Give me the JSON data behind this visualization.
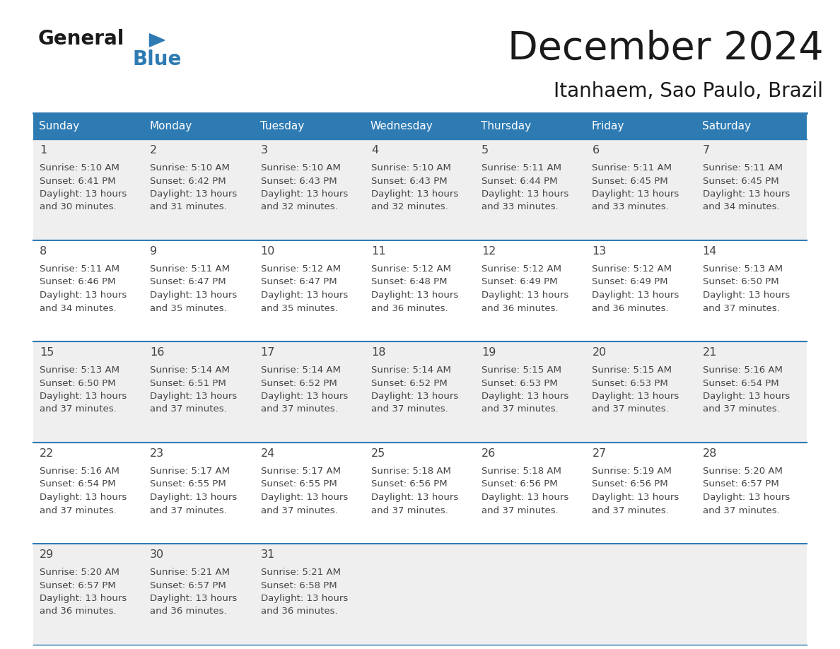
{
  "title": "December 2024",
  "subtitle": "Itanhaem, Sao Paulo, Brazil",
  "header_color": "#2E7BB4",
  "header_text_color": "#FFFFFF",
  "day_names": [
    "Sunday",
    "Monday",
    "Tuesday",
    "Wednesday",
    "Thursday",
    "Friday",
    "Saturday"
  ],
  "background_color": "#FFFFFF",
  "alt_cell_bg_color": "#EFEFEF",
  "border_color": "#2E7BB4",
  "text_color": "#444444",
  "days": [
    {
      "day": 1,
      "col": 0,
      "row": 0,
      "sunrise": "5:10 AM",
      "sunset": "6:41 PM",
      "daylight_h": "13 hours",
      "daylight_m": "and 30 minutes."
    },
    {
      "day": 2,
      "col": 1,
      "row": 0,
      "sunrise": "5:10 AM",
      "sunset": "6:42 PM",
      "daylight_h": "13 hours",
      "daylight_m": "and 31 minutes."
    },
    {
      "day": 3,
      "col": 2,
      "row": 0,
      "sunrise": "5:10 AM",
      "sunset": "6:43 PM",
      "daylight_h": "13 hours",
      "daylight_m": "and 32 minutes."
    },
    {
      "day": 4,
      "col": 3,
      "row": 0,
      "sunrise": "5:10 AM",
      "sunset": "6:43 PM",
      "daylight_h": "13 hours",
      "daylight_m": "and 32 minutes."
    },
    {
      "day": 5,
      "col": 4,
      "row": 0,
      "sunrise": "5:11 AM",
      "sunset": "6:44 PM",
      "daylight_h": "13 hours",
      "daylight_m": "and 33 minutes."
    },
    {
      "day": 6,
      "col": 5,
      "row": 0,
      "sunrise": "5:11 AM",
      "sunset": "6:45 PM",
      "daylight_h": "13 hours",
      "daylight_m": "and 33 minutes."
    },
    {
      "day": 7,
      "col": 6,
      "row": 0,
      "sunrise": "5:11 AM",
      "sunset": "6:45 PM",
      "daylight_h": "13 hours",
      "daylight_m": "and 34 minutes."
    },
    {
      "day": 8,
      "col": 0,
      "row": 1,
      "sunrise": "5:11 AM",
      "sunset": "6:46 PM",
      "daylight_h": "13 hours",
      "daylight_m": "and 34 minutes."
    },
    {
      "day": 9,
      "col": 1,
      "row": 1,
      "sunrise": "5:11 AM",
      "sunset": "6:47 PM",
      "daylight_h": "13 hours",
      "daylight_m": "and 35 minutes."
    },
    {
      "day": 10,
      "col": 2,
      "row": 1,
      "sunrise": "5:12 AM",
      "sunset": "6:47 PM",
      "daylight_h": "13 hours",
      "daylight_m": "and 35 minutes."
    },
    {
      "day": 11,
      "col": 3,
      "row": 1,
      "sunrise": "5:12 AM",
      "sunset": "6:48 PM",
      "daylight_h": "13 hours",
      "daylight_m": "and 36 minutes."
    },
    {
      "day": 12,
      "col": 4,
      "row": 1,
      "sunrise": "5:12 AM",
      "sunset": "6:49 PM",
      "daylight_h": "13 hours",
      "daylight_m": "and 36 minutes."
    },
    {
      "day": 13,
      "col": 5,
      "row": 1,
      "sunrise": "5:12 AM",
      "sunset": "6:49 PM",
      "daylight_h": "13 hours",
      "daylight_m": "and 36 minutes."
    },
    {
      "day": 14,
      "col": 6,
      "row": 1,
      "sunrise": "5:13 AM",
      "sunset": "6:50 PM",
      "daylight_h": "13 hours",
      "daylight_m": "and 37 minutes."
    },
    {
      "day": 15,
      "col": 0,
      "row": 2,
      "sunrise": "5:13 AM",
      "sunset": "6:50 PM",
      "daylight_h": "13 hours",
      "daylight_m": "and 37 minutes."
    },
    {
      "day": 16,
      "col": 1,
      "row": 2,
      "sunrise": "5:14 AM",
      "sunset": "6:51 PM",
      "daylight_h": "13 hours",
      "daylight_m": "and 37 minutes."
    },
    {
      "day": 17,
      "col": 2,
      "row": 2,
      "sunrise": "5:14 AM",
      "sunset": "6:52 PM",
      "daylight_h": "13 hours",
      "daylight_m": "and 37 minutes."
    },
    {
      "day": 18,
      "col": 3,
      "row": 2,
      "sunrise": "5:14 AM",
      "sunset": "6:52 PM",
      "daylight_h": "13 hours",
      "daylight_m": "and 37 minutes."
    },
    {
      "day": 19,
      "col": 4,
      "row": 2,
      "sunrise": "5:15 AM",
      "sunset": "6:53 PM",
      "daylight_h": "13 hours",
      "daylight_m": "and 37 minutes."
    },
    {
      "day": 20,
      "col": 5,
      "row": 2,
      "sunrise": "5:15 AM",
      "sunset": "6:53 PM",
      "daylight_h": "13 hours",
      "daylight_m": "and 37 minutes."
    },
    {
      "day": 21,
      "col": 6,
      "row": 2,
      "sunrise": "5:16 AM",
      "sunset": "6:54 PM",
      "daylight_h": "13 hours",
      "daylight_m": "and 37 minutes."
    },
    {
      "day": 22,
      "col": 0,
      "row": 3,
      "sunrise": "5:16 AM",
      "sunset": "6:54 PM",
      "daylight_h": "13 hours",
      "daylight_m": "and 37 minutes."
    },
    {
      "day": 23,
      "col": 1,
      "row": 3,
      "sunrise": "5:17 AM",
      "sunset": "6:55 PM",
      "daylight_h": "13 hours",
      "daylight_m": "and 37 minutes."
    },
    {
      "day": 24,
      "col": 2,
      "row": 3,
      "sunrise": "5:17 AM",
      "sunset": "6:55 PM",
      "daylight_h": "13 hours",
      "daylight_m": "and 37 minutes."
    },
    {
      "day": 25,
      "col": 3,
      "row": 3,
      "sunrise": "5:18 AM",
      "sunset": "6:56 PM",
      "daylight_h": "13 hours",
      "daylight_m": "and 37 minutes."
    },
    {
      "day": 26,
      "col": 4,
      "row": 3,
      "sunrise": "5:18 AM",
      "sunset": "6:56 PM",
      "daylight_h": "13 hours",
      "daylight_m": "and 37 minutes."
    },
    {
      "day": 27,
      "col": 5,
      "row": 3,
      "sunrise": "5:19 AM",
      "sunset": "6:56 PM",
      "daylight_h": "13 hours",
      "daylight_m": "and 37 minutes."
    },
    {
      "day": 28,
      "col": 6,
      "row": 3,
      "sunrise": "5:20 AM",
      "sunset": "6:57 PM",
      "daylight_h": "13 hours",
      "daylight_m": "and 37 minutes."
    },
    {
      "day": 29,
      "col": 0,
      "row": 4,
      "sunrise": "5:20 AM",
      "sunset": "6:57 PM",
      "daylight_h": "13 hours",
      "daylight_m": "and 36 minutes."
    },
    {
      "day": 30,
      "col": 1,
      "row": 4,
      "sunrise": "5:21 AM",
      "sunset": "6:57 PM",
      "daylight_h": "13 hours",
      "daylight_m": "and 36 minutes."
    },
    {
      "day": 31,
      "col": 2,
      "row": 4,
      "sunrise": "5:21 AM",
      "sunset": "6:58 PM",
      "daylight_h": "13 hours",
      "daylight_m": "and 36 minutes."
    }
  ]
}
